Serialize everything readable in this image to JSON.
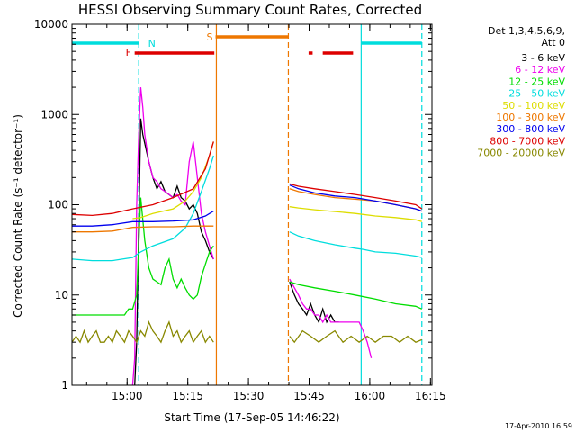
{
  "chart_data": {
    "type": "line",
    "title": "HESSI Observing Summary Count Rates, Corrected",
    "xlabel": "Start Time (17-Sep-05 14:46:22)",
    "ylabel": "Corrected Count Rate (s⁻¹ detector⁻¹)",
    "y_scale": "log",
    "ylim": [
      1,
      10000
    ],
    "y_ticks": [
      1,
      10,
      100,
      1000,
      10000
    ],
    "y_tick_labels": [
      "1",
      "10",
      "100",
      "1000",
      "10000"
    ],
    "xlim_minutes": [
      0,
      89
    ],
    "x_ticks_minutes": [
      13.63,
      28.63,
      43.63,
      58.63,
      73.63,
      88.63
    ],
    "x_tick_labels": [
      "15:00",
      "15:15",
      "15:30",
      "15:45",
      "16:00",
      "16:15"
    ],
    "grid": false,
    "legend_position": "right-outside",
    "legend_header": [
      "Det 1,3,4,5,6,9,",
      "Att 0"
    ],
    "timestamp": "17-Apr-2010 16:59",
    "flags": [
      {
        "label": "F",
        "color": "#dd0000",
        "segments": [
          [
            15.5,
            35.2
          ],
          [
            58.5,
            59.5
          ],
          [
            62,
            69.5
          ]
        ]
      },
      {
        "label": "N",
        "color": "#00dddd",
        "segments": [
          [
            0,
            16.5
          ],
          [
            71.5,
            86.5
          ]
        ]
      },
      {
        "label": "S",
        "color": "#ee7700",
        "segments": [
          [
            35.5,
            53.5
          ]
        ]
      }
    ],
    "vlines": [
      {
        "x": 16.5,
        "color": "#00dddd",
        "dashed": true
      },
      {
        "x": 35.7,
        "color": "#ee7700",
        "dashed": false
      },
      {
        "x": 53.5,
        "color": "#ee7700",
        "dashed": true
      },
      {
        "x": 71.5,
        "color": "#00dddd",
        "dashed": false
      },
      {
        "x": 86.5,
        "color": "#00dddd",
        "dashed": true
      }
    ],
    "series": [
      {
        "name": "3 - 6 keV",
        "color": "#000000",
        "segments": [
          {
            "x": [
              15.5,
              16,
              17,
              17.5,
              19,
              20,
              21,
              22,
              23,
              25,
              26,
              27,
              28,
              29,
              30,
              31,
              32,
              33,
              34,
              35
            ],
            "y": [
              1,
              3,
              900,
              600,
              300,
              200,
              150,
              180,
              140,
              120,
              160,
              120,
              110,
              90,
              100,
              80,
              50,
              40,
              30,
              25
            ]
          },
          {
            "x": [
              53.8,
              55,
              56,
              57,
              58,
              59,
              60,
              61,
              62,
              63,
              64,
              65,
              66
            ],
            "y": [
              14,
              10,
              8,
              7,
              6,
              8,
              6,
              5,
              7,
              5,
              6,
              5,
              5
            ]
          }
        ]
      },
      {
        "name": "6 - 12 keV",
        "color": "#ee00ee",
        "segments": [
          {
            "x": [
              15,
              15.5,
              16,
              16.5,
              17,
              17.5,
              18,
              19,
              20,
              21,
              22,
              23,
              24,
              25,
              26,
              27,
              28,
              29,
              30,
              31,
              32,
              33,
              34,
              35
            ],
            "y": [
              1,
              2,
              100,
              600,
              2000,
              1200,
              600,
              300,
              200,
              180,
              150,
              140,
              130,
              120,
              130,
              110,
              100,
              300,
              500,
              200,
              80,
              50,
              35,
              25
            ]
          },
          {
            "x": [
              53.8,
              55,
              56,
              57,
              58,
              59,
              60,
              61,
              62,
              63,
              64,
              65,
              66,
              67,
              68,
              69,
              70,
              71,
              72,
              73,
              74
            ],
            "y": [
              15,
              12,
              10,
              8,
              7,
              7,
              6,
              6,
              5,
              6,
              5,
              5,
              5,
              5,
              5,
              5,
              5,
              5,
              4,
              3,
              2
            ]
          }
        ]
      },
      {
        "name": "12 - 25 keV",
        "color": "#00dd00",
        "segments": [
          {
            "x": [
              0,
              5,
              10,
              13,
              14,
              15,
              16,
              17,
              18,
              19,
              20,
              21,
              22,
              23,
              24,
              25,
              26,
              27,
              28,
              29,
              30,
              31,
              32,
              33,
              34,
              35
            ],
            "y": [
              6,
              6,
              6,
              6,
              7,
              7,
              10,
              120,
              40,
              20,
              15,
              14,
              13,
              20,
              25,
              15,
              12,
              15,
              12,
              10,
              9,
              10,
              16,
              22,
              30,
              35
            ]
          },
          {
            "x": [
              53.8,
              56,
              60,
              65,
              70,
              75,
              80,
              85,
              86.5
            ],
            "y": [
              14,
              13,
              12,
              11,
              10,
              9,
              8,
              7.5,
              7
            ]
          }
        ]
      },
      {
        "name": "25 - 50 keV",
        "color": "#00dddd",
        "segments": [
          {
            "x": [
              0,
              5,
              10,
              15,
              17,
              20,
              25,
              28,
              30,
              32,
              34,
              35
            ],
            "y": [
              25,
              24,
              24,
              26,
              30,
              35,
              42,
              55,
              80,
              140,
              250,
              350
            ]
          },
          {
            "x": [
              53.8,
              56,
              60,
              65,
              70,
              72,
              75,
              80,
              85,
              86.5
            ],
            "y": [
              50,
              45,
              40,
              36,
              33,
              32,
              30,
              29,
              27,
              26
            ]
          }
        ]
      },
      {
        "name": "50 - 100 keV",
        "color": "#dddd00",
        "segments": [
          {
            "x": [
              15,
              17,
              20,
              25,
              28,
              30,
              32,
              34,
              35
            ],
            "y": [
              70,
              72,
              80,
              90,
              110,
              140,
              200,
              350,
              500
            ]
          },
          {
            "x": [
              53.8,
              56,
              60,
              65,
              70,
              75,
              80,
              85,
              86.5
            ],
            "y": [
              95,
              92,
              88,
              84,
              80,
              75,
              72,
              68,
              65
            ]
          }
        ]
      },
      {
        "name": "100 - 300 keV",
        "color": "#ee7700",
        "segments": [
          {
            "x": [
              0,
              5,
              10,
              15,
              20,
              25,
              30,
              35
            ],
            "y": [
              50,
              50,
              51,
              56,
              57,
              57,
              58,
              58
            ]
          },
          {
            "x": [
              53.8,
              56,
              60,
              65,
              70,
              75,
              80,
              85,
              86.5
            ],
            "y": [
              150,
              140,
              130,
              120,
              115,
              110,
              100,
              90,
              85
            ]
          }
        ]
      },
      {
        "name": "300 - 800 keV",
        "color": "#0000ee",
        "segments": [
          {
            "x": [
              0,
              5,
              10,
              15,
              20,
              25,
              30,
              33,
              35
            ],
            "y": [
              58,
              58,
              60,
              65,
              65,
              66,
              68,
              75,
              85
            ]
          },
          {
            "x": [
              53.8,
              56,
              60,
              65,
              70,
              75,
              80,
              85,
              86.5
            ],
            "y": [
              165,
              150,
              135,
              125,
              120,
              110,
              100,
              90,
              85
            ]
          }
        ]
      },
      {
        "name": "800 - 7000 keV",
        "color": "#dd0000",
        "segments": [
          {
            "x": [
              0,
              5,
              10,
              15,
              20,
              25,
              30,
              33,
              35
            ],
            "y": [
              78,
              76,
              80,
              90,
              100,
              120,
              150,
              250,
              500
            ]
          },
          {
            "x": [
              53.8,
              56,
              60,
              65,
              70,
              75,
              80,
              85,
              86.5
            ],
            "y": [
              170,
              160,
              150,
              140,
              130,
              120,
              110,
              100,
              90
            ]
          }
        ]
      },
      {
        "name": "7000 - 20000 keV",
        "color": "#888800",
        "segments": [
          {
            "x": [
              0,
              1,
              2,
              3,
              4,
              5,
              6,
              7,
              8,
              9,
              10,
              11,
              12,
              13,
              14,
              15,
              16,
              17,
              18,
              19,
              20,
              21,
              22,
              23,
              24,
              25,
              26,
              27,
              28,
              29,
              30,
              31,
              32,
              33,
              34,
              35
            ],
            "y": [
              3,
              3.5,
              3,
              4,
              3,
              3.5,
              4,
              3,
              3,
              3.5,
              3,
              4,
              3.5,
              3,
              4,
              3.5,
              3,
              4,
              3.5,
              5,
              4,
              3.5,
              3,
              4,
              5,
              3.5,
              4,
              3,
              3.5,
              4,
              3,
              3.5,
              4,
              3,
              3.5,
              3
            ]
          },
          {
            "x": [
              53.8,
              55,
              57,
              59,
              61,
              63,
              65,
              67,
              69,
              71,
              73,
              75,
              77,
              79,
              81,
              83,
              85,
              86.5
            ],
            "y": [
              3.5,
              3,
              4,
              3.5,
              3,
              3.5,
              4,
              3,
              3.5,
              3,
              3.5,
              3,
              3.5,
              3.5,
              3,
              3.5,
              3,
              3.2
            ]
          }
        ]
      }
    ]
  }
}
